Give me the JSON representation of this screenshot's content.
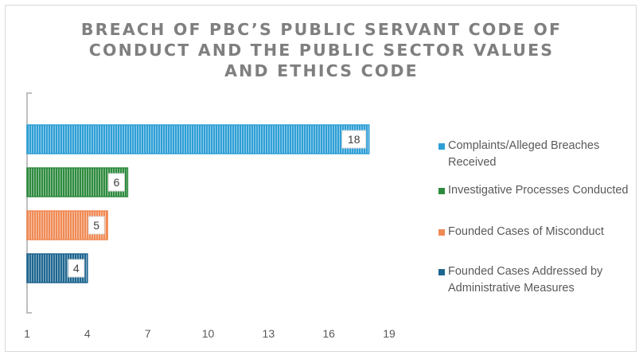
{
  "chart_data": {
    "type": "bar",
    "orientation": "horizontal",
    "title": "BREACH OF PBC’S PUBLIC SERVANT CODE OF\nCONDUCT AND THE PUBLIC SECTOR VALUES\nAND ETHICS CODE",
    "series": [
      {
        "name": "Complaints/Alleged Breaches Received",
        "value": 18,
        "color": "#2e9fd6"
      },
      {
        "name": "Investigative Processes Conducted",
        "value": 6,
        "color": "#2e8b3f"
      },
      {
        "name": "Founded Cases of Misconduct",
        "value": 5,
        "color": "#f08a55"
      },
      {
        "name": "Founded Cases Addressed by Administrative Measures",
        "value": 4,
        "color": "#1e6690"
      }
    ],
    "xlim": [
      1,
      19
    ],
    "x_ticks": [
      1,
      4,
      7,
      10,
      13,
      16,
      19
    ],
    "x_tick_labels": [
      "1",
      "4",
      "7",
      "10",
      "13",
      "16",
      "19"
    ],
    "legend_position": "right",
    "bar_pattern": "vertical-stripes",
    "grid": false
  }
}
